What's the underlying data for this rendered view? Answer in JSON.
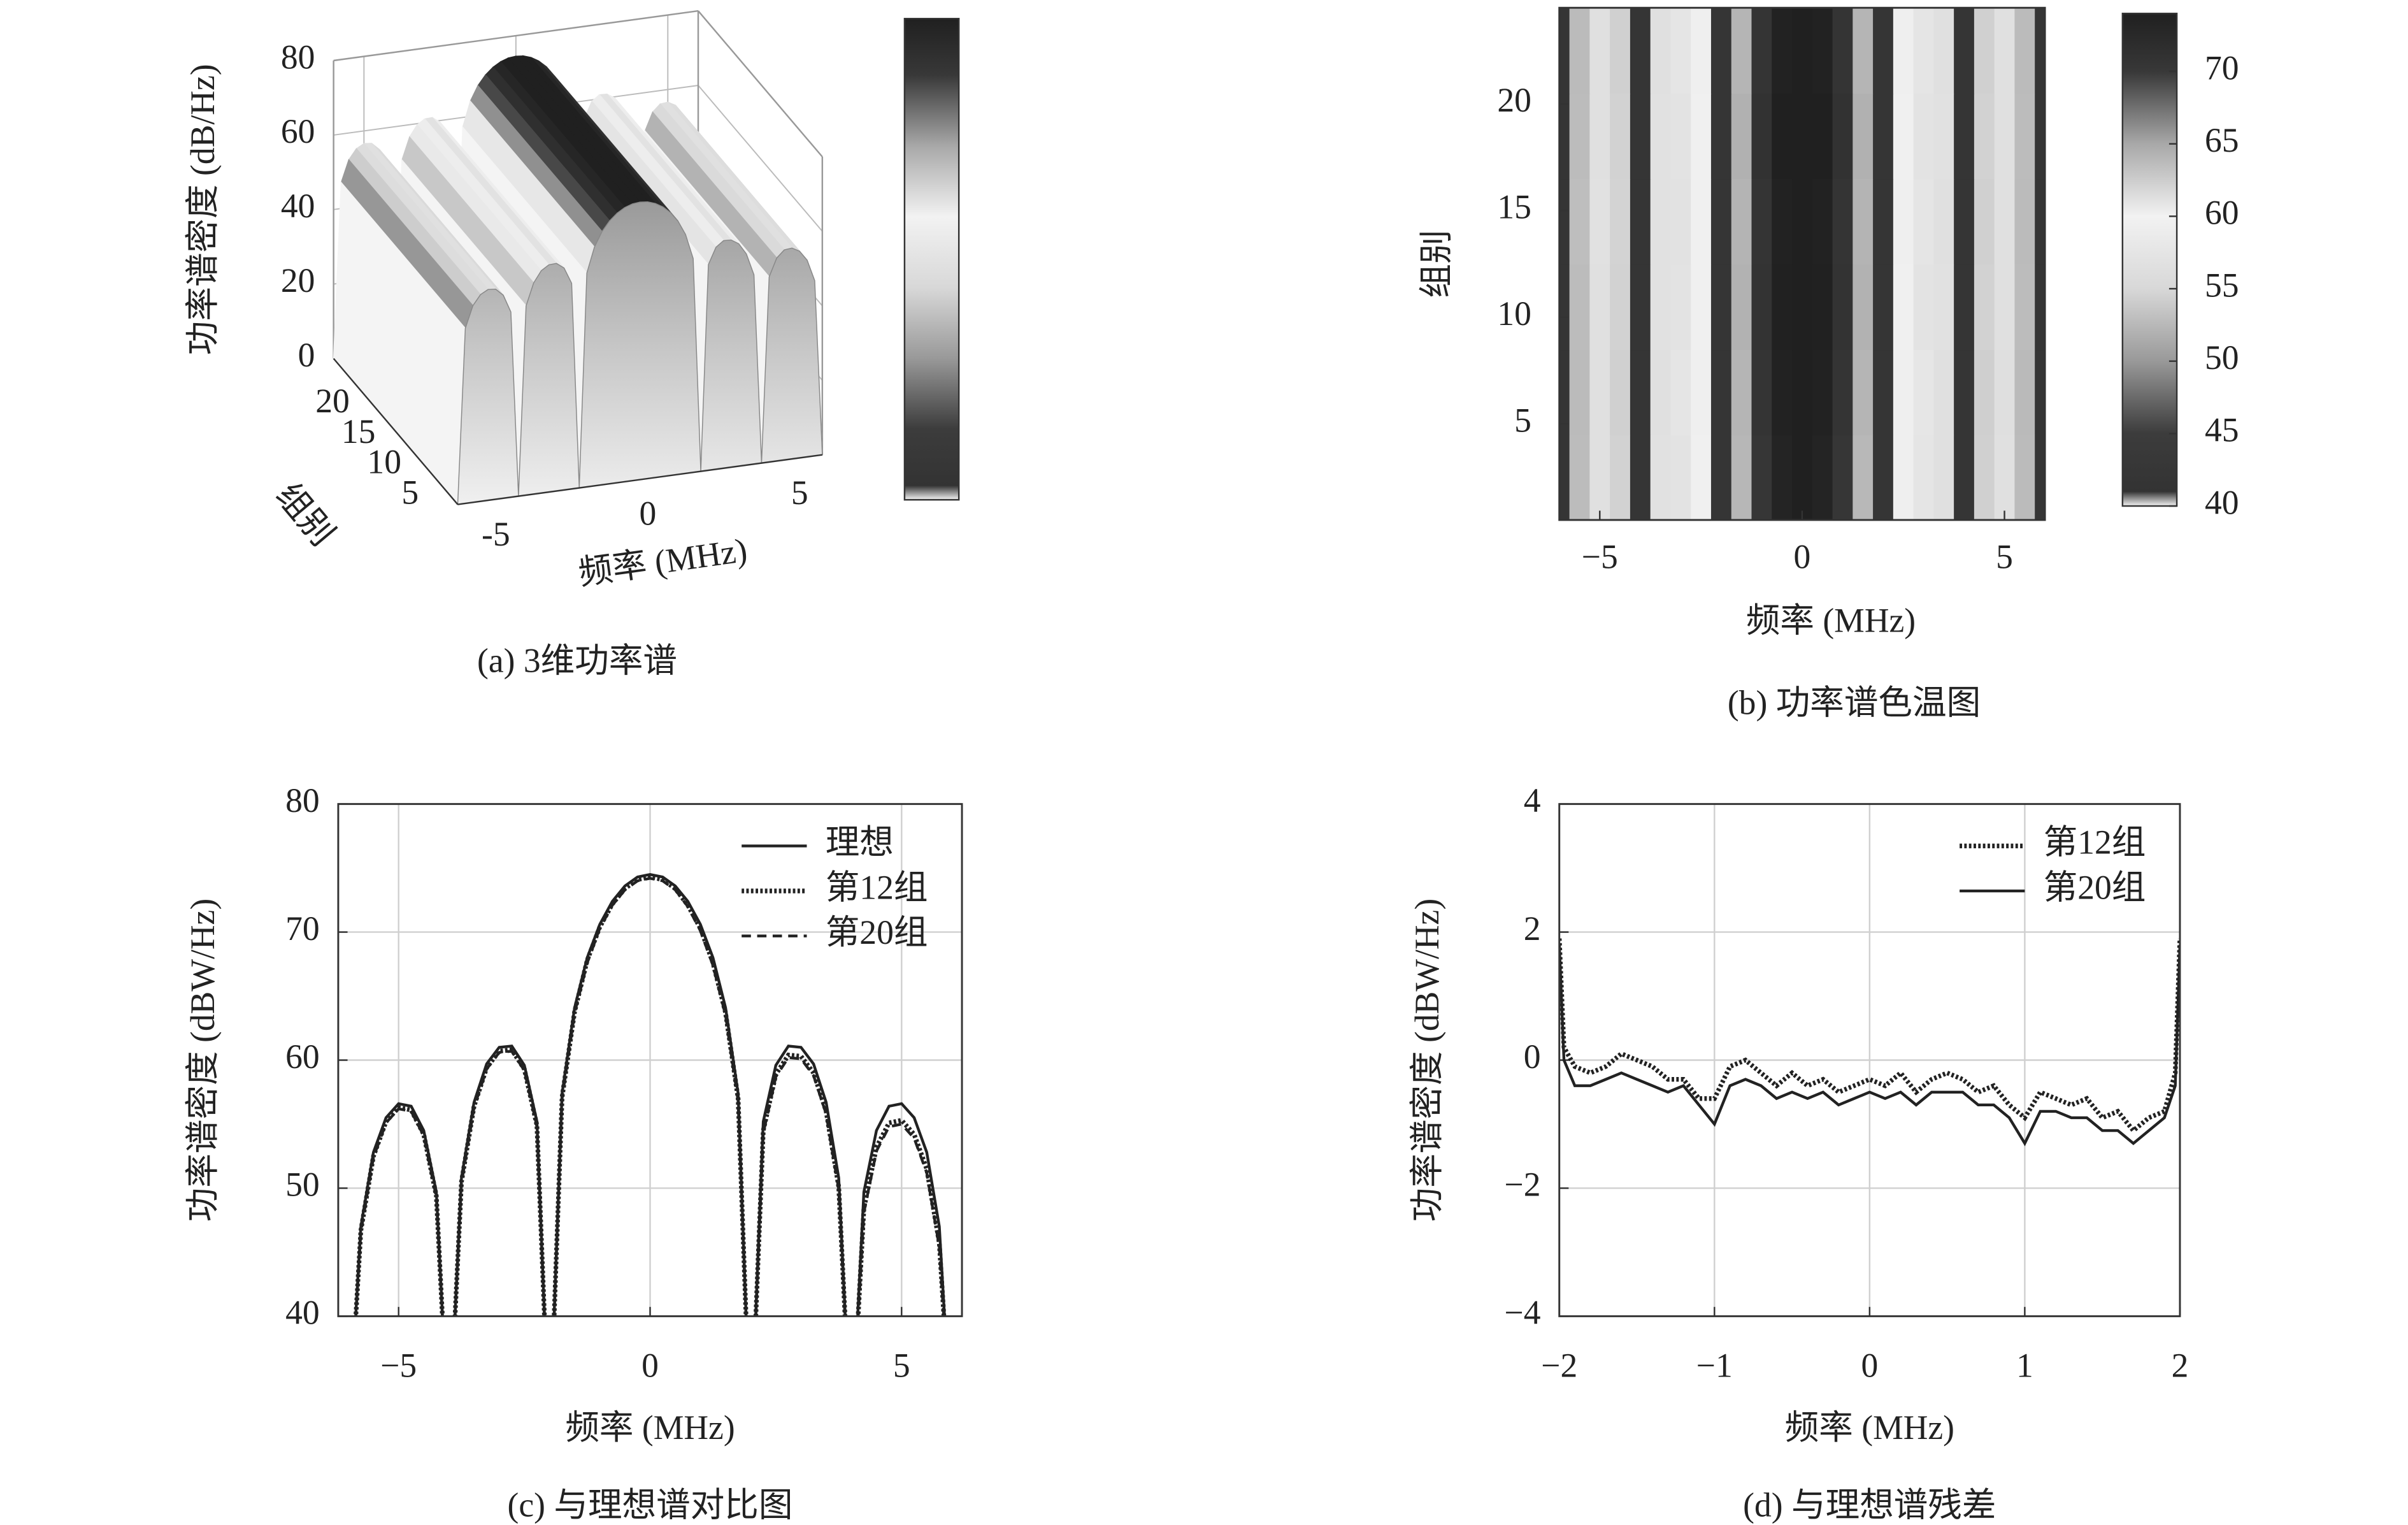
{
  "chart_data": [
    {
      "type": "surface3d",
      "caption": "(a) 3维功率谱",
      "zlabel": "功率谱密度 (dB/Hz)",
      "ylabel": "组别",
      "xlabel": "频率 (MHz)",
      "x": [
        -6,
        -5.75,
        -5.5,
        -5.25,
        -5,
        -4.75,
        -4.5,
        -4.25,
        -4,
        -3.75,
        -3.5,
        -3.25,
        -3,
        -2.75,
        -2.5,
        -2.25,
        -2,
        -1.75,
        -1.5,
        -1.25,
        -1,
        -0.75,
        -0.5,
        -0.25,
        0,
        0.25,
        0.5,
        0.75,
        1,
        1.25,
        1.5,
        1.75,
        2,
        2.25,
        2.5,
        2.75,
        3,
        3.25,
        3.5,
        3.75,
        4,
        4.25,
        4.5,
        4.75,
        5,
        5.25,
        5.5,
        5.75,
        6
      ],
      "values": [
        0,
        47.0,
        52.8,
        55.5,
        56.6,
        56.4,
        54.5,
        49.7,
        0,
        50.8,
        56.7,
        59.7,
        61.0,
        61.1,
        59.6,
        55.2,
        0,
        57.4,
        64.1,
        68.0,
        70.6,
        72.4,
        73.6,
        74.3,
        74.5,
        74.3,
        73.6,
        72.4,
        70.6,
        68.0,
        64.1,
        57.4,
        0,
        55.2,
        59.6,
        61.1,
        61.0,
        59.7,
        56.7,
        50.8,
        0,
        49.7,
        54.5,
        56.4,
        56.6,
        55.5,
        52.8,
        47.0,
        0
      ],
      "xlim": [
        -6,
        6
      ],
      "ylim": [
        0,
        24
      ],
      "zlim": [
        0,
        80
      ],
      "xticks": [
        -5,
        0,
        5
      ],
      "yticks": [
        5,
        10,
        15,
        20
      ],
      "zticks": [
        0,
        20,
        40,
        60,
        80
      ],
      "colormap": [
        {
          "value": 40,
          "color": "#f4f4f4"
        },
        {
          "value": 41,
          "color": "#333333"
        },
        {
          "value": 45,
          "color": "#3c3c3c"
        },
        {
          "value": 50,
          "color": "#999999"
        },
        {
          "value": 55,
          "color": "#d8d8d8"
        },
        {
          "value": 60,
          "color": "#f2f2f2"
        },
        {
          "value": 65,
          "color": "#a8a8a8"
        },
        {
          "value": 70,
          "color": "#383838"
        },
        {
          "value": 74,
          "color": "#202020"
        }
      ]
    },
    {
      "type": "heatmap",
      "caption": "(b) 功率谱色温图",
      "xlabel": "频率 (MHz)",
      "ylabel": "组别",
      "x": [
        -6,
        -5.5,
        -5,
        -4.5,
        -4,
        -3.5,
        -3,
        -2.5,
        -2,
        -1.5,
        -1,
        -0.5,
        0,
        0.5,
        1,
        1.5,
        2,
        2.5,
        3,
        3.5,
        4,
        4.5,
        5,
        5.5,
        6
      ],
      "y": [
        2.5,
        6.5,
        10.5,
        14.5,
        18.5,
        22.5
      ],
      "z": [
        [
          42,
          52.8,
          56.6,
          54.5,
          42,
          56.7,
          61.0,
          59.6,
          42,
          64.0,
          70.4,
          73.4,
          74.3,
          73.4,
          70.4,
          63.9,
          42,
          59.5,
          60.9,
          56.6,
          42,
          54.4,
          56.5,
          52.7,
          42
        ],
        [
          42,
          52.7,
          56.5,
          54.4,
          42,
          56.6,
          60.9,
          59.5,
          42,
          64.1,
          70.6,
          73.6,
          74.5,
          73.6,
          70.6,
          64.1,
          42,
          59.4,
          60.8,
          56.5,
          42,
          54.3,
          56.4,
          52.6,
          42
        ],
        [
          42,
          52.8,
          56.6,
          54.5,
          42,
          56.7,
          61.0,
          59.6,
          42,
          64.3,
          70.9,
          73.9,
          74.8,
          73.9,
          70.9,
          64.3,
          42,
          59.6,
          61.0,
          56.7,
          42,
          54.5,
          56.6,
          52.8,
          42
        ],
        [
          42,
          52.9,
          56.7,
          54.6,
          42,
          56.8,
          61.1,
          59.7,
          42,
          64.2,
          70.7,
          73.7,
          74.6,
          73.7,
          70.7,
          64.2,
          42,
          59.5,
          60.9,
          56.6,
          42,
          54.4,
          56.5,
          52.7,
          42
        ],
        [
          42,
          52.8,
          56.6,
          54.5,
          42,
          56.7,
          61.0,
          59.6,
          42,
          64.4,
          71.0,
          74.0,
          74.9,
          74.0,
          71.0,
          64.4,
          42,
          59.6,
          61.0,
          56.7,
          42,
          54.5,
          56.6,
          52.8,
          42
        ],
        [
          42,
          52.7,
          56.5,
          54.4,
          42,
          56.6,
          60.9,
          59.5,
          42,
          64.1,
          70.6,
          73.6,
          74.5,
          73.6,
          70.6,
          64.1,
          42,
          59.5,
          60.9,
          56.6,
          42,
          54.4,
          56.5,
          52.7,
          42
        ]
      ],
      "xlim": [
        -6,
        6
      ],
      "ylim": [
        0.5,
        24.5
      ],
      "xticks": [
        {
          "value": -5,
          "label": "−5"
        },
        0,
        5
      ],
      "yticks": [
        5,
        10,
        15,
        20
      ],
      "colorbar_ticks": [
        40,
        45,
        50,
        55,
        60,
        65,
        70
      ],
      "colormap": [
        {
          "value": 40,
          "color": "#f4f4f4"
        },
        {
          "value": 41,
          "color": "#333333"
        },
        {
          "value": 45,
          "color": "#3c3c3c"
        },
        {
          "value": 50,
          "color": "#999999"
        },
        {
          "value": 55,
          "color": "#d8d8d8"
        },
        {
          "value": 60,
          "color": "#f2f2f2"
        },
        {
          "value": 65,
          "color": "#a8a8a8"
        },
        {
          "value": 70,
          "color": "#383838"
        },
        {
          "value": 74,
          "color": "#202020"
        }
      ]
    },
    {
      "type": "line",
      "caption": "(c) 与理想谱对比图",
      "xlabel": "频率 (MHz)",
      "ylabel": "功率谱密度 (dBW/Hz)",
      "x": [
        -6,
        -5.75,
        -5.5,
        -5.25,
        -5,
        -4.75,
        -4.5,
        -4.25,
        -4,
        -3.75,
        -3.5,
        -3.25,
        -3,
        -2.75,
        -2.5,
        -2.25,
        -2,
        -1.75,
        -1.5,
        -1.25,
        -1,
        -0.75,
        -0.5,
        -0.25,
        0,
        0.25,
        0.5,
        0.75,
        1,
        1.25,
        1.5,
        1.75,
        2,
        2.25,
        2.5,
        2.75,
        3,
        3.25,
        3.5,
        3.75,
        4,
        4.25,
        4.5,
        4.75,
        5,
        5.25,
        5.5,
        5.75,
        6
      ],
      "series": [
        {
          "name": "理想",
          "color": "#222222",
          "style": "solid",
          "values": [
            30,
            47.0,
            52.8,
            55.5,
            56.6,
            56.4,
            54.5,
            49.7,
            30,
            50.8,
            56.7,
            59.7,
            61.0,
            61.1,
            59.6,
            55.2,
            30,
            57.4,
            64.1,
            68.0,
            70.6,
            72.4,
            73.6,
            74.3,
            74.5,
            74.3,
            73.6,
            72.4,
            70.6,
            68.0,
            64.1,
            57.4,
            30,
            55.2,
            59.6,
            61.1,
            61.0,
            59.7,
            56.7,
            50.8,
            30,
            49.7,
            54.5,
            56.4,
            56.6,
            55.5,
            52.8,
            47.0,
            30
          ]
        },
        {
          "name": "第12组",
          "color": "#222222",
          "style": "dotted",
          "values": [
            30,
            46.7,
            52.5,
            55.2,
            56.3,
            56.1,
            54.2,
            49.4,
            30,
            50.5,
            56.4,
            59.4,
            60.7,
            60.8,
            59.3,
            54.9,
            30,
            57.1,
            63.8,
            67.8,
            70.4,
            72.2,
            73.4,
            74.1,
            74.3,
            74.1,
            73.4,
            72.1,
            70.3,
            67.6,
            63.7,
            57.0,
            30,
            54.5,
            58.9,
            60.4,
            60.3,
            59.0,
            56.0,
            50.1,
            30,
            48.4,
            53.2,
            55.1,
            55.3,
            54.2,
            51.5,
            45.7,
            30
          ]
        },
        {
          "name": "第20组",
          "color": "#222222",
          "style": "dashed",
          "values": [
            30,
            46.6,
            52.4,
            55.1,
            56.2,
            56.0,
            54.1,
            49.3,
            30,
            50.4,
            56.3,
            59.3,
            60.6,
            60.7,
            59.2,
            54.8,
            30,
            57.0,
            63.7,
            67.6,
            70.3,
            72.1,
            73.3,
            74.0,
            74.2,
            74.0,
            73.3,
            72.0,
            70.1,
            67.4,
            63.5,
            56.8,
            30,
            54.3,
            58.7,
            60.2,
            60.1,
            58.8,
            55.8,
            49.9,
            30,
            48.1,
            52.9,
            54.8,
            55.0,
            53.9,
            51.2,
            45.4,
            30
          ]
        }
      ],
      "xlim": [
        -6.2,
        6.2
      ],
      "ylim": [
        40,
        80
      ],
      "xticks": [
        {
          "value": -5,
          "label": "−5"
        },
        0,
        5
      ],
      "yticks": [
        40,
        50,
        60,
        70,
        80
      ],
      "grid": true,
      "legend": "upper right"
    },
    {
      "type": "line",
      "caption": "(d) 与理想谱残差",
      "xlabel": "频率 (MHz)",
      "ylabel": "功率谱密度 (dBW/Hz)",
      "x": [
        -2,
        -1.97,
        -1.9,
        -1.8,
        -1.7,
        -1.6,
        -1.5,
        -1.4,
        -1.3,
        -1.2,
        -1.1,
        -1,
        -0.9,
        -0.8,
        -0.7,
        -0.6,
        -0.5,
        -0.4,
        -0.3,
        -0.2,
        -0.1,
        0,
        0.1,
        0.2,
        0.3,
        0.4,
        0.5,
        0.6,
        0.7,
        0.8,
        0.9,
        1,
        1.1,
        1.2,
        1.3,
        1.4,
        1.5,
        1.6,
        1.7,
        1.8,
        1.9,
        1.97,
        2
      ],
      "series": [
        {
          "name": "第12组",
          "color": "#222222",
          "style": "dotted",
          "values": [
            1.9,
            0.2,
            -0.1,
            -0.2,
            -0.1,
            0.1,
            0,
            -0.1,
            -0.3,
            -0.3,
            -0.6,
            -0.6,
            -0.1,
            0,
            -0.2,
            -0.4,
            -0.2,
            -0.4,
            -0.3,
            -0.5,
            -0.4,
            -0.3,
            -0.4,
            -0.2,
            -0.5,
            -0.3,
            -0.2,
            -0.3,
            -0.5,
            -0.4,
            -0.7,
            -0.9,
            -0.5,
            -0.6,
            -0.7,
            -0.6,
            -0.9,
            -0.8,
            -1.1,
            -0.9,
            -0.8,
            -0.2,
            1.9
          ]
        },
        {
          "name": "第20组",
          "color": "#222222",
          "style": "solid",
          "values": [
            1.8,
            0,
            -0.4,
            -0.4,
            -0.3,
            -0.2,
            -0.3,
            -0.4,
            -0.5,
            -0.4,
            -0.7,
            -1.0,
            -0.4,
            -0.3,
            -0.4,
            -0.6,
            -0.5,
            -0.6,
            -0.5,
            -0.7,
            -0.6,
            -0.5,
            -0.6,
            -0.5,
            -0.7,
            -0.5,
            -0.5,
            -0.5,
            -0.7,
            -0.7,
            -0.9,
            -1.3,
            -0.8,
            -0.8,
            -0.9,
            -0.9,
            -1.1,
            -1.1,
            -1.3,
            -1.1,
            -0.9,
            -0.4,
            1.8
          ]
        }
      ],
      "xlim": [
        -2,
        2
      ],
      "ylim": [
        -4,
        4
      ],
      "xticks": [
        {
          "value": -2,
          "label": "−2"
        },
        {
          "value": -1,
          "label": "−1"
        },
        0,
        1,
        2
      ],
      "yticks": [
        {
          "value": -4,
          "label": "−4"
        },
        {
          "value": -2,
          "label": "−2"
        },
        0,
        2,
        4
      ],
      "grid": true,
      "legend": "upper right"
    }
  ]
}
